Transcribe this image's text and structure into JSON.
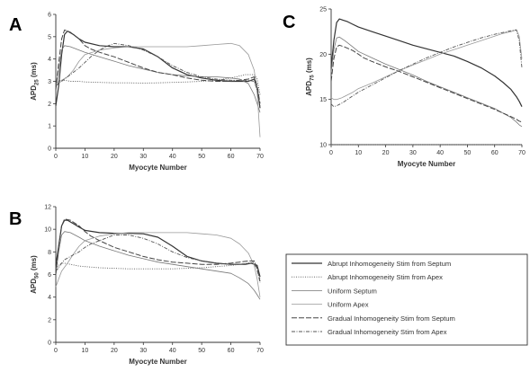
{
  "chart_data": [
    {
      "panel": "A",
      "type": "line",
      "ylabel_main": "APD",
      "ylabel_sub": "25",
      "ylabel_unit": " (ms)",
      "xlabel": "Myocyte Number",
      "xlim": [
        0,
        70
      ],
      "ylim": [
        0,
        6
      ],
      "xticks": [
        0,
        10,
        20,
        30,
        40,
        50,
        60,
        70
      ],
      "yticks": [
        0,
        1,
        2,
        3,
        4,
        5,
        6
      ],
      "series": [
        {
          "name": "Abrupt Inhomogeneity Stim from Septum",
          "x": [
            0,
            1,
            2,
            3,
            4,
            6,
            8,
            10,
            15,
            20,
            25,
            30,
            35,
            40,
            45,
            50,
            55,
            60,
            62,
            64,
            66,
            68,
            69,
            70
          ],
          "y": [
            1.9,
            2.8,
            4.2,
            5.1,
            5.25,
            5.1,
            4.9,
            4.75,
            4.6,
            4.55,
            4.55,
            4.45,
            4.1,
            3.6,
            3.3,
            3.15,
            3.05,
            3.0,
            3.0,
            3.0,
            3.0,
            3.1,
            2.7,
            1.8
          ]
        },
        {
          "name": "Abrupt Inhomogeneity Stim from Apex",
          "x": [
            0,
            1,
            2,
            3,
            5,
            8,
            10,
            15,
            20,
            25,
            30,
            35,
            40,
            45,
            50,
            55,
            60,
            65,
            68,
            69,
            70
          ],
          "y": [
            2.9,
            3.0,
            3.05,
            3.05,
            3.0,
            3.0,
            2.97,
            2.95,
            2.93,
            2.93,
            2.92,
            2.93,
            2.95,
            2.97,
            3.0,
            3.05,
            3.15,
            3.3,
            3.3,
            3.1,
            2.4
          ]
        },
        {
          "name": "Uniform Septum",
          "x": [
            0,
            1,
            2,
            3,
            5,
            8,
            10,
            15,
            20,
            25,
            30,
            35,
            40,
            45,
            50,
            55,
            60,
            63,
            66,
            68,
            69,
            70
          ],
          "y": [
            2.7,
            3.5,
            4.4,
            4.6,
            4.55,
            4.4,
            4.3,
            4.1,
            3.9,
            3.7,
            3.55,
            3.4,
            3.3,
            3.25,
            3.2,
            3.2,
            3.15,
            3.1,
            2.9,
            2.4,
            2.0,
            1.6
          ]
        },
        {
          "name": "Uniform Apex",
          "x": [
            0,
            1,
            2,
            4,
            6,
            8,
            10,
            15,
            20,
            25,
            30,
            35,
            40,
            45,
            50,
            55,
            60,
            63,
            66,
            68,
            69,
            70
          ],
          "y": [
            2.8,
            2.95,
            3.05,
            3.2,
            3.5,
            3.9,
            4.2,
            4.4,
            4.5,
            4.55,
            4.55,
            4.55,
            4.55,
            4.55,
            4.6,
            4.65,
            4.7,
            4.6,
            4.2,
            3.5,
            2.5,
            0.5
          ]
        },
        {
          "name": "Gradual Inhomogeneity Stim from Septum",
          "x": [
            0,
            1,
            2,
            3,
            5,
            8,
            10,
            12,
            15,
            20,
            25,
            30,
            35,
            40,
            45,
            50,
            55,
            60,
            63,
            66,
            68,
            69,
            70
          ],
          "y": [
            2.6,
            3.8,
            4.9,
            5.3,
            5.2,
            4.9,
            4.6,
            4.45,
            4.3,
            4.1,
            3.85,
            3.6,
            3.4,
            3.3,
            3.15,
            3.05,
            3.0,
            3.0,
            3.05,
            3.1,
            3.2,
            2.8,
            2.0
          ]
        },
        {
          "name": "Gradual Inhomogeneity Stim from Apex",
          "x": [
            0,
            1,
            2,
            3,
            5,
            8,
            10,
            12,
            15,
            18,
            20,
            25,
            30,
            35,
            40,
            45,
            50,
            55,
            60,
            63,
            66,
            68,
            69,
            70
          ],
          "y": [
            2.8,
            2.9,
            3.0,
            3.1,
            3.3,
            3.6,
            3.85,
            4.1,
            4.4,
            4.6,
            4.7,
            4.6,
            4.4,
            4.1,
            3.7,
            3.4,
            3.2,
            3.1,
            3.05,
            3.05,
            3.05,
            3.0,
            2.6,
            1.9
          ]
        }
      ]
    },
    {
      "panel": "B",
      "type": "line",
      "ylabel_main": "APD",
      "ylabel_sub": "50",
      "ylabel_unit": " (ms)",
      "xlabel": "Myocyte Number",
      "xlim": [
        0,
        70
      ],
      "ylim": [
        0,
        12
      ],
      "xticks": [
        0,
        10,
        20,
        30,
        40,
        50,
        60,
        70
      ],
      "yticks": [
        0,
        2,
        4,
        6,
        8,
        10,
        12
      ],
      "series": [
        {
          "name": "Abrupt Inhomogeneity Stim from Septum",
          "x": [
            0,
            1,
            2,
            3,
            4,
            6,
            8,
            10,
            15,
            20,
            25,
            30,
            35,
            40,
            45,
            50,
            55,
            60,
            62,
            65,
            67,
            69,
            70
          ],
          "y": [
            6.8,
            8.5,
            10.3,
            10.8,
            10.8,
            10.5,
            10.2,
            9.9,
            9.7,
            9.65,
            9.65,
            9.6,
            9.3,
            8.5,
            7.6,
            7.2,
            7.0,
            6.9,
            6.9,
            6.9,
            7.0,
            6.8,
            5.8
          ]
        },
        {
          "name": "Abrupt Inhomogeneity Stim from Apex",
          "x": [
            0,
            1,
            2,
            3,
            5,
            8,
            10,
            15,
            20,
            25,
            30,
            35,
            40,
            45,
            50,
            55,
            60,
            63,
            66,
            68,
            69,
            70
          ],
          "y": [
            6.5,
            6.8,
            7.0,
            7.0,
            6.9,
            6.75,
            6.7,
            6.6,
            6.55,
            6.5,
            6.5,
            6.5,
            6.5,
            6.55,
            6.6,
            6.7,
            6.8,
            6.9,
            7.0,
            7.1,
            6.8,
            5.6
          ]
        },
        {
          "name": "Uniform Septum",
          "x": [
            0,
            1,
            2,
            3,
            5,
            8,
            10,
            15,
            20,
            25,
            30,
            35,
            40,
            45,
            50,
            55,
            60,
            63,
            66,
            68,
            69,
            70
          ],
          "y": [
            6.0,
            8.0,
            9.5,
            9.8,
            9.7,
            9.3,
            9.0,
            8.5,
            8.1,
            7.7,
            7.4,
            7.1,
            6.9,
            6.7,
            6.5,
            6.3,
            6.1,
            5.7,
            5.2,
            4.6,
            4.2,
            3.8
          ]
        },
        {
          "name": "Uniform Apex",
          "x": [
            0,
            1,
            2,
            4,
            6,
            8,
            10,
            15,
            20,
            25,
            30,
            35,
            40,
            45,
            50,
            55,
            60,
            63,
            66,
            68,
            69,
            70
          ],
          "y": [
            4.9,
            5.6,
            6.3,
            7.0,
            7.8,
            8.5,
            9.0,
            9.4,
            9.6,
            9.7,
            9.7,
            9.7,
            9.7,
            9.7,
            9.6,
            9.5,
            9.2,
            8.7,
            7.9,
            6.8,
            5.6,
            4.0
          ]
        },
        {
          "name": "Gradual Inhomogeneity Stim from Septum",
          "x": [
            0,
            1,
            2,
            3,
            5,
            8,
            10,
            12,
            15,
            20,
            25,
            30,
            35,
            40,
            45,
            50,
            55,
            60,
            63,
            66,
            68,
            69,
            70
          ],
          "y": [
            6.0,
            8.5,
            10.3,
            10.9,
            10.8,
            10.3,
            9.8,
            9.4,
            9.0,
            8.4,
            8.0,
            7.6,
            7.3,
            7.1,
            7.0,
            6.9,
            6.9,
            7.0,
            7.1,
            7.2,
            7.2,
            6.5,
            5.4
          ]
        },
        {
          "name": "Gradual Inhomogeneity Stim from Apex",
          "x": [
            0,
            1,
            2,
            3,
            5,
            8,
            10,
            12,
            15,
            18,
            20,
            25,
            30,
            35,
            40,
            45,
            50,
            55,
            60,
            63,
            66,
            68,
            69,
            70
          ],
          "y": [
            6.3,
            6.6,
            7.0,
            7.3,
            7.6,
            8.0,
            8.4,
            8.7,
            9.0,
            9.3,
            9.5,
            9.5,
            9.2,
            8.7,
            8.0,
            7.5,
            7.2,
            7.0,
            6.9,
            6.9,
            7.0,
            7.0,
            6.4,
            5.3
          ]
        }
      ]
    },
    {
      "panel": "C",
      "type": "line",
      "ylabel_main": "APD",
      "ylabel_sub": "75",
      "ylabel_unit": " (ms)",
      "xlabel": "Myocyte Number",
      "xlim": [
        0,
        70
      ],
      "ylim": [
        10,
        25
      ],
      "xticks": [
        0,
        10,
        20,
        30,
        40,
        50,
        60,
        70
      ],
      "yticks": [
        10,
        15,
        20,
        25
      ],
      "series": [
        {
          "name": "Abrupt Inhomogeneity Stim from Septum",
          "x": [
            0,
            1,
            2,
            3,
            4,
            6,
            8,
            10,
            15,
            20,
            25,
            30,
            35,
            40,
            45,
            50,
            55,
            60,
            63,
            66,
            68,
            69,
            70
          ],
          "y": [
            18.5,
            21.5,
            23.5,
            23.9,
            23.8,
            23.6,
            23.3,
            23.0,
            22.5,
            22.0,
            21.5,
            21.0,
            20.6,
            20.2,
            19.8,
            19.2,
            18.5,
            17.6,
            16.9,
            16.1,
            15.3,
            14.8,
            14.2
          ]
        },
        {
          "name": "Abrupt Inhomogeneity Stim from Apex",
          "x": [
            0,
            70
          ],
          "y": [
            10.0,
            10.0
          ]
        },
        {
          "name": "Uniform Septum",
          "x": [
            0,
            1,
            2,
            3,
            5,
            8,
            10,
            15,
            20,
            25,
            30,
            35,
            40,
            45,
            50,
            55,
            60,
            63,
            66,
            68,
            69,
            70
          ],
          "y": [
            18.0,
            20.5,
            21.8,
            21.9,
            21.5,
            20.8,
            20.3,
            19.6,
            18.9,
            18.3,
            17.7,
            17.0,
            16.4,
            15.8,
            15.2,
            14.6,
            14.0,
            13.5,
            13.0,
            12.5,
            12.2,
            12.0
          ]
        },
        {
          "name": "Uniform Apex",
          "x": [
            0,
            1,
            2,
            4,
            6,
            8,
            10,
            15,
            20,
            25,
            30,
            35,
            40,
            45,
            50,
            55,
            60,
            63,
            66,
            68,
            69,
            70
          ],
          "y": [
            15.2,
            15.0,
            15.0,
            15.2,
            15.5,
            15.8,
            16.2,
            16.8,
            17.5,
            18.2,
            18.8,
            19.4,
            20.0,
            20.5,
            21.0,
            21.5,
            22.0,
            22.3,
            22.5,
            22.7,
            22.0,
            19.5
          ]
        },
        {
          "name": "Gradual Inhomogeneity Stim from Septum",
          "x": [
            0,
            1,
            2,
            3,
            5,
            8,
            10,
            12,
            15,
            20,
            25,
            30,
            35,
            40,
            45,
            50,
            55,
            60,
            63,
            66,
            68,
            69,
            70
          ],
          "y": [
            17.0,
            19.5,
            20.8,
            21.0,
            20.8,
            20.4,
            20.0,
            19.6,
            19.2,
            18.6,
            18.1,
            17.5,
            16.9,
            16.3,
            15.7,
            15.1,
            14.5,
            13.9,
            13.5,
            13.1,
            12.8,
            12.6,
            12.5
          ]
        },
        {
          "name": "Gradual Inhomogeneity Stim from Apex",
          "x": [
            0,
            1,
            2,
            4,
            6,
            8,
            10,
            15,
            20,
            25,
            30,
            35,
            40,
            45,
            50,
            55,
            60,
            63,
            66,
            68,
            69,
            70
          ],
          "y": [
            14.5,
            14.2,
            14.3,
            14.6,
            15.0,
            15.4,
            15.8,
            16.6,
            17.4,
            18.2,
            18.9,
            19.6,
            20.2,
            20.8,
            21.3,
            21.8,
            22.2,
            22.4,
            22.6,
            22.7,
            21.5,
            18.5
          ]
        }
      ]
    }
  ],
  "legend": {
    "entries": [
      {
        "label": "Abrupt Inhomogeneity Stim from Septum",
        "dash": "",
        "width": 1.2,
        "color": "#333333"
      },
      {
        "label": "Abrupt Inhomogeneity Stim from Apex",
        "dash": "1 1.5",
        "width": 0.9,
        "color": "#555555"
      },
      {
        "label": "Uniform Septum",
        "dash": "",
        "width": 0.8,
        "color": "#777777"
      },
      {
        "label": "Uniform Apex",
        "dash": "",
        "width": 0.8,
        "color": "#999999"
      },
      {
        "label": "Gradual Inhomogeneity Stim from Septum",
        "dash": "6 2",
        "width": 1.0,
        "color": "#444444"
      },
      {
        "label": "Gradual Inhomogeneity Stim from Apex",
        "dash": "4 1.5 1 1.5",
        "width": 0.9,
        "color": "#555555"
      }
    ]
  }
}
